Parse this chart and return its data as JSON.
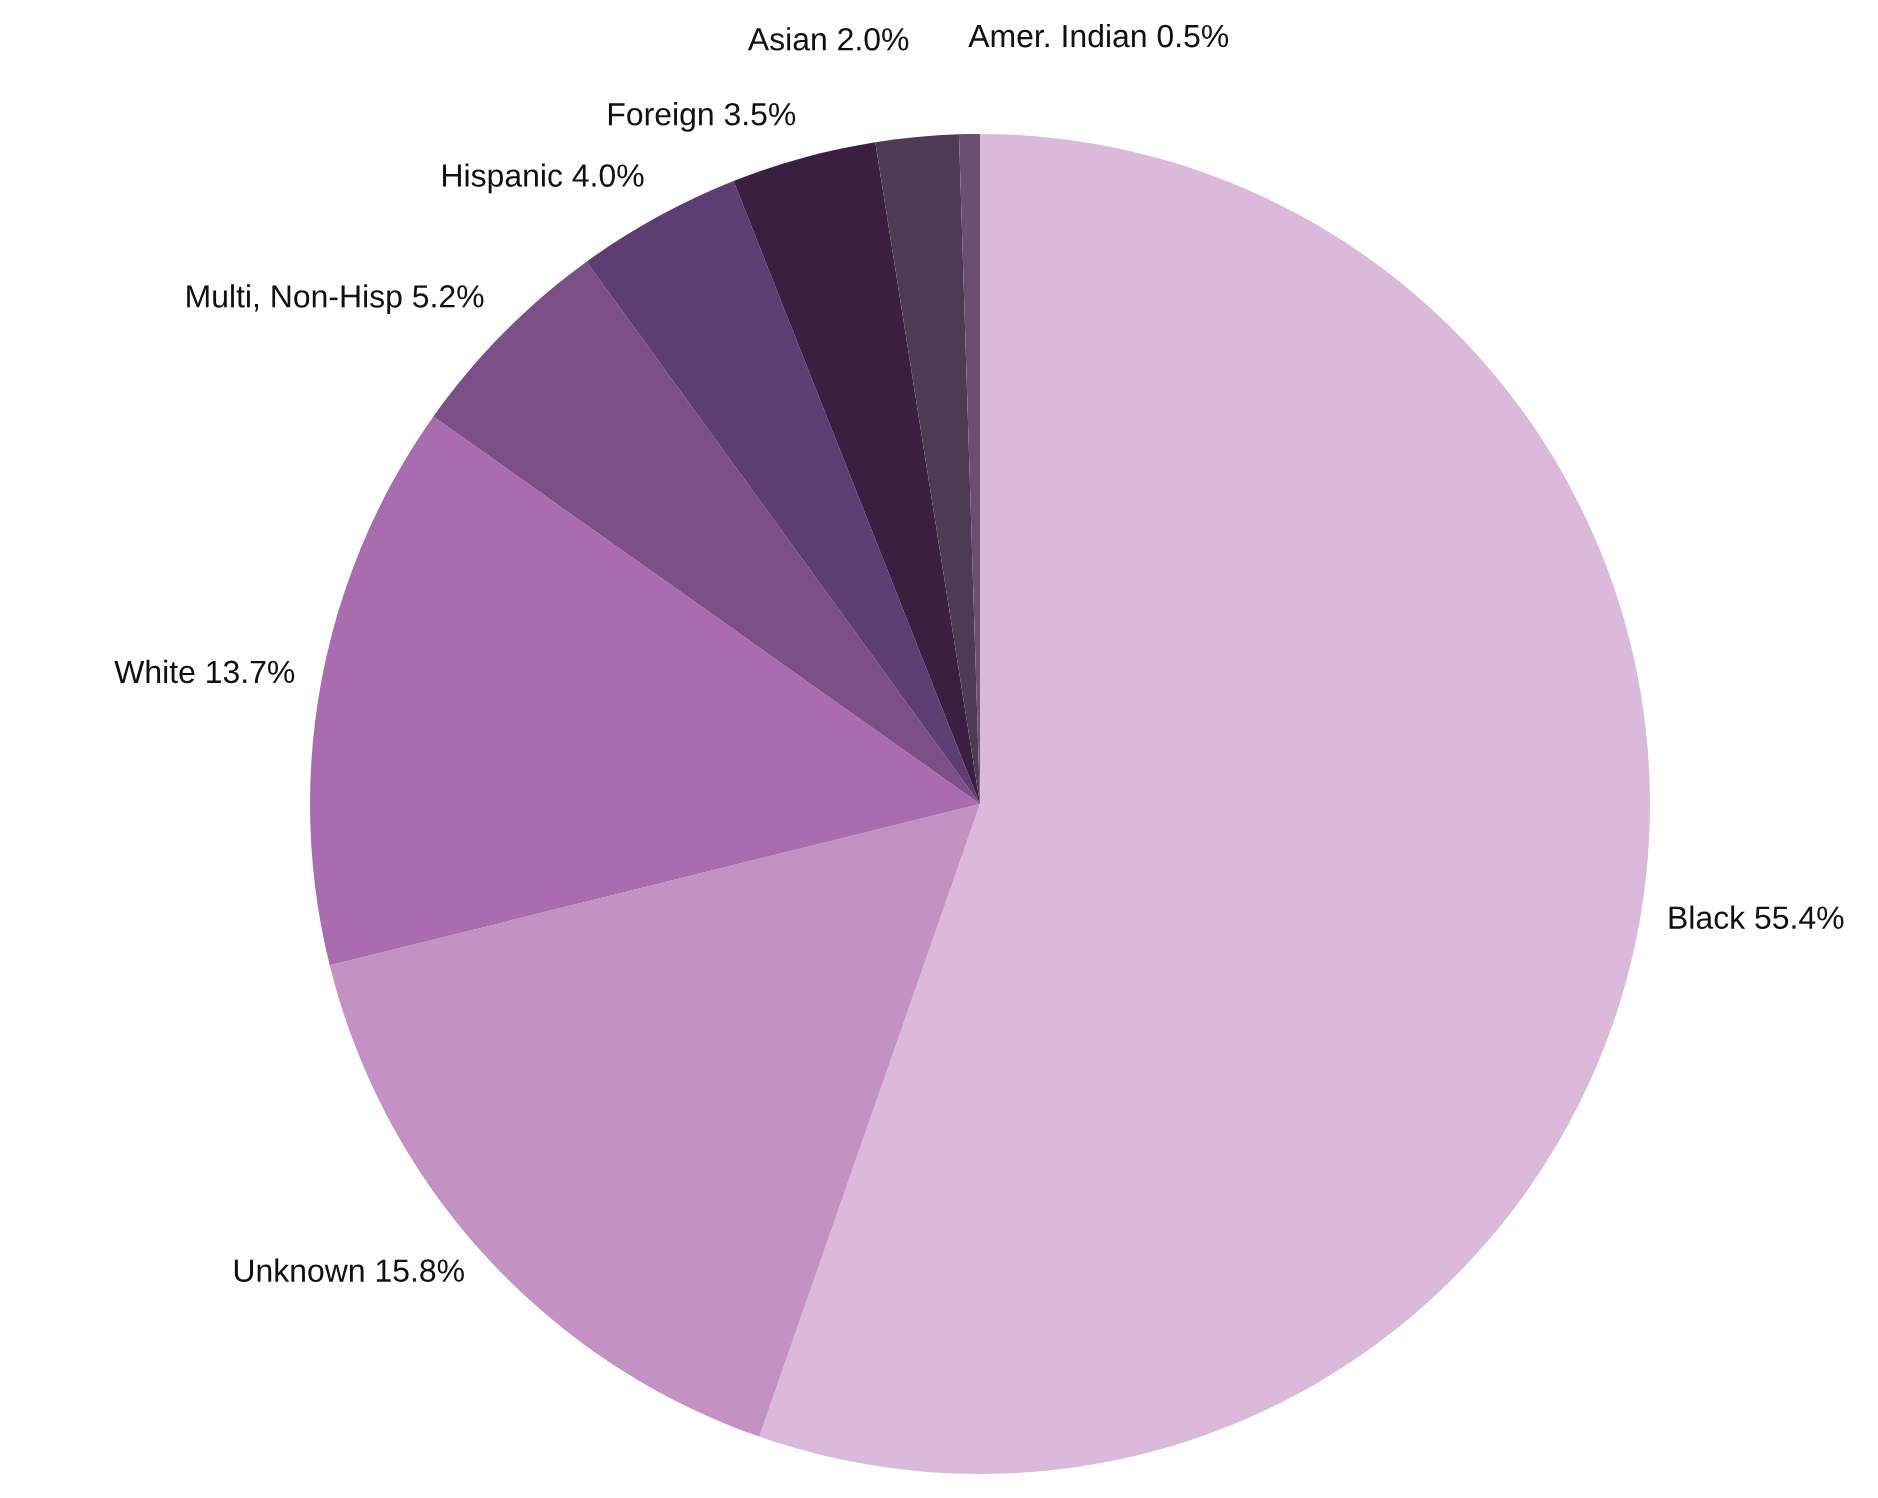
{
  "chart_data": {
    "type": "pie",
    "categories": [
      "Black",
      "Unknown",
      "White",
      "Multi, Non-Hisp",
      "Hispanic",
      "Foreign",
      "Asian",
      "Amer. Indian"
    ],
    "values": [
      55.4,
      15.8,
      13.7,
      5.2,
      4.0,
      3.5,
      2.0,
      0.5
    ],
    "value_labels": [
      "55.4%",
      "15.8%",
      "13.7%",
      "5.2%",
      "4.0%",
      "3.5%",
      "2.0%",
      "0.5%"
    ],
    "colors": [
      "#dbb9da",
      "#c391c3",
      "#a96cae",
      "#7c4f87",
      "#5e3d73",
      "#3b1f40",
      "#4e3a55",
      "#6b4f72"
    ],
    "legend": false
  }
}
